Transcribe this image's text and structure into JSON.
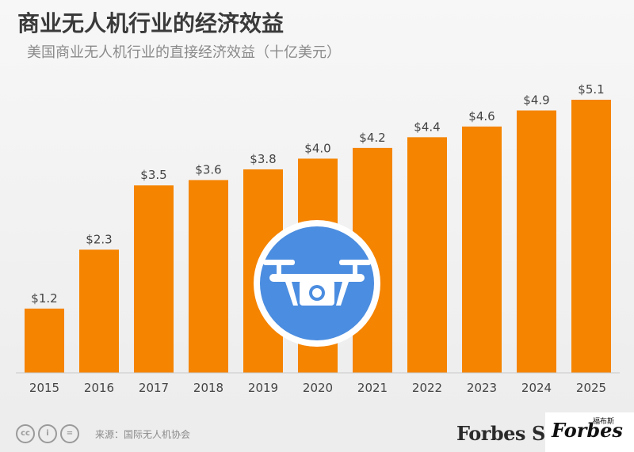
{
  "title": "商业无人机行业的经济效益",
  "subtitle": "美国商业无人机行业的直接经济效益（十亿美元）",
  "source": "来源：国际无人机协会",
  "brand": "Forbes",
  "brand_fragment": "ST",
  "watermark": {
    "text": "Forbes",
    "small": "福布斯"
  },
  "colors": {
    "bar": "#f58400",
    "icon_circle": "#4b8de0",
    "icon_ring": "#ffffff",
    "drone": "#ffffff"
  },
  "icons": {
    "center": "drone-icon"
  },
  "chart_data": {
    "type": "bar",
    "title": "商业无人机行业的经济效益",
    "subtitle": "美国商业无人机行业的直接经济效益（十亿美元）",
    "categories": [
      "2015",
      "2016",
      "2017",
      "2018",
      "2019",
      "2020",
      "2021",
      "2022",
      "2023",
      "2024",
      "2025"
    ],
    "values": [
      1.2,
      2.3,
      3.5,
      3.6,
      3.8,
      4.0,
      4.2,
      4.4,
      4.6,
      4.9,
      5.1
    ],
    "value_labels": [
      "$1.2",
      "$2.3",
      "$3.5",
      "$3.6",
      "$3.8",
      "$4.0",
      "$4.2",
      "$4.4",
      "$4.6",
      "$4.9",
      "$5.1"
    ],
    "xlabel": "",
    "ylabel": "",
    "ylim": [
      0,
      5.1
    ],
    "grid": false,
    "legend": "none"
  }
}
